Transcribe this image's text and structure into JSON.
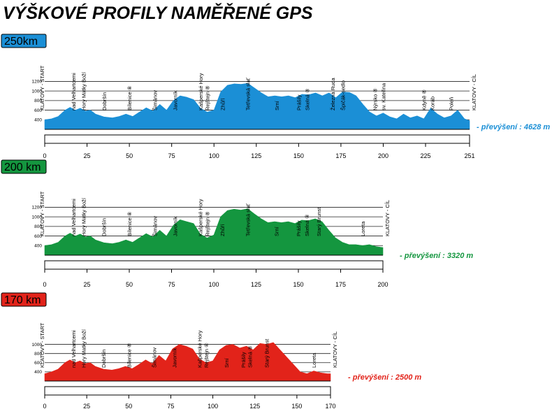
{
  "title": "VÝŠKOVÉ PROFILY NAMĚŘENÉ GPS",
  "chart_data": [
    {
      "type": "area",
      "badge": "250km",
      "color": "#1b8fd6",
      "badge_color": "#1b8fd6",
      "ylim": [
        200,
        1250
      ],
      "y_ticks": [
        "400",
        "600",
        "800",
        "1000",
        "1200"
      ],
      "xlim": [
        0,
        251
      ],
      "x_ticks": [
        "0",
        "25",
        "50",
        "75",
        "100",
        "125",
        "150",
        "175",
        "200",
        "225",
        "251"
      ],
      "elevation_gain": "- převýšení : 4628 m",
      "x": [
        0,
        4,
        8,
        12,
        15,
        18,
        21,
        24,
        27,
        30,
        35,
        40,
        44,
        48,
        52,
        56,
        60,
        64,
        68,
        72,
        76,
        80,
        84,
        88,
        92,
        96,
        100,
        104,
        108,
        112,
        116,
        120,
        124,
        128,
        132,
        136,
        140,
        144,
        148,
        152,
        156,
        160,
        164,
        168,
        172,
        176,
        180,
        184,
        188,
        192,
        196,
        200,
        204,
        208,
        212,
        216,
        220,
        224,
        228,
        232,
        236,
        240,
        244,
        248,
        251
      ],
      "y": [
        400,
        420,
        470,
        600,
        660,
        600,
        640,
        580,
        600,
        520,
        460,
        440,
        470,
        520,
        470,
        560,
        650,
        580,
        720,
        600,
        800,
        900,
        870,
        820,
        640,
        560,
        600,
        980,
        1120,
        1150,
        1140,
        1160,
        1060,
        960,
        880,
        900,
        880,
        900,
        860,
        930,
        920,
        960,
        900,
        960,
        860,
        980,
        970,
        900,
        720,
        560,
        480,
        540,
        460,
        420,
        520,
        440,
        480,
        420,
        640,
        520,
        440,
        480,
        600,
        420,
        380
      ],
      "labels": [
        "KLATOVY - START",
        "nad Velhartcemi",
        "Hory Matky Boží",
        "Dobršín",
        "Bílenice ⑧",
        "Šimánov",
        "Javorník",
        "Kašperské Hory",
        "Rejštejn ⑧",
        "Zhůří",
        "Tetřevská slať",
        "Srní",
        "Prášily",
        "Skelná ⑧",
        "Železná Ruda",
        "Špičák-sedlo",
        "Nýrsko ⑧",
        "sv. Kateřina",
        "Kdyně ⑧",
        "Koráb",
        "Poleň",
        "KLATOVY - CÍL"
      ],
      "label_x": [
        0,
        17,
        23,
        35,
        50,
        65,
        77,
        92,
        96,
        105,
        120,
        137,
        150,
        155,
        170,
        176,
        195,
        200,
        224,
        229,
        240,
        251
      ]
    },
    {
      "type": "area",
      "badge": "200 km",
      "color": "#14963f",
      "badge_color": "#14963f",
      "ylim": [
        200,
        1250
      ],
      "y_ticks": [
        "400",
        "600",
        "800",
        "1000",
        "1200"
      ],
      "xlim": [
        0,
        200
      ],
      "x_ticks": [
        "0",
        "25",
        "50",
        "75",
        "100",
        "125",
        "150",
        "175",
        "200"
      ],
      "elevation_gain": "- převýšení : 3320 m",
      "x": [
        0,
        4,
        8,
        12,
        15,
        18,
        21,
        24,
        27,
        30,
        35,
        40,
        44,
        48,
        52,
        56,
        60,
        64,
        68,
        72,
        76,
        80,
        84,
        88,
        92,
        96,
        100,
        104,
        108,
        112,
        116,
        120,
        124,
        128,
        132,
        136,
        140,
        144,
        148,
        152,
        156,
        160,
        164,
        168,
        172,
        176,
        180,
        184,
        188,
        192,
        196,
        200
      ],
      "y": [
        400,
        420,
        470,
        600,
        660,
        600,
        640,
        580,
        600,
        520,
        460,
        440,
        470,
        520,
        470,
        560,
        650,
        580,
        720,
        600,
        820,
        940,
        900,
        860,
        640,
        560,
        620,
        1000,
        1130,
        1160,
        1140,
        1170,
        1060,
        960,
        880,
        900,
        880,
        900,
        860,
        930,
        920,
        960,
        900,
        720,
        560,
        470,
        420,
        420,
        400,
        420,
        380,
        360
      ],
      "labels": [
        "KLATOVY - START",
        "nad Velhartcemi",
        "Hory Matky Boží",
        "Dobršín",
        "Bílenice ⑧",
        "Šimánov",
        "Javorník",
        "Kašperské Hory",
        "Rejštejn ⑧",
        "Zhůří",
        "Tetřevská slať",
        "Srní",
        "Prášily",
        "Skelná ⑧",
        "Starý Brunst",
        "Loreta",
        "KLATOVY - CÍL"
      ],
      "label_x": [
        0,
        17,
        23,
        35,
        50,
        65,
        77,
        92,
        96,
        105,
        120,
        137,
        150,
        155,
        162,
        188,
        200
      ]
    },
    {
      "type": "area",
      "badge": "170 km",
      "color": "#e2231a",
      "badge_color": "#e2231a",
      "ylim": [
        200,
        1100
      ],
      "y_ticks": [
        "400",
        "600",
        "800",
        "1000"
      ],
      "xlim": [
        0,
        170
      ],
      "x_ticks": [
        "0",
        "25",
        "50",
        "75",
        "100",
        "125",
        "150",
        "170"
      ],
      "elevation_gain": "- převýšení : 2500 m",
      "x": [
        0,
        4,
        8,
        12,
        15,
        18,
        21,
        24,
        27,
        30,
        35,
        40,
        44,
        48,
        52,
        56,
        60,
        64,
        68,
        72,
        76,
        80,
        84,
        88,
        92,
        96,
        100,
        104,
        108,
        112,
        116,
        120,
        124,
        128,
        132,
        136,
        140,
        144,
        148,
        152,
        156,
        160,
        164,
        168,
        170
      ],
      "y": [
        360,
        400,
        460,
        600,
        660,
        600,
        640,
        580,
        600,
        520,
        460,
        440,
        470,
        520,
        470,
        560,
        660,
        580,
        760,
        640,
        900,
        1000,
        960,
        900,
        680,
        600,
        640,
        880,
        980,
        1000,
        920,
        960,
        880,
        1020,
        1000,
        1040,
        880,
        720,
        560,
        400,
        360,
        420,
        380,
        360,
        360
      ],
      "labels": [
        "KLATOVY - START",
        "nad Velhartcemi",
        "Hory Matky Boží",
        "Dobršín",
        "Bílenice ⑧",
        "Šimánov",
        "Javorník",
        "Kašperské Hory",
        "Rejštejn ⑧",
        "Srní",
        "Prášily",
        "Skelná ⑧",
        "Starý Brunst",
        "Loreta",
        "KLATOVY - CÍL"
      ],
      "label_x": [
        0,
        17,
        23,
        35,
        50,
        65,
        77,
        92,
        96,
        108,
        118,
        122,
        132,
        160,
        170
      ]
    }
  ]
}
